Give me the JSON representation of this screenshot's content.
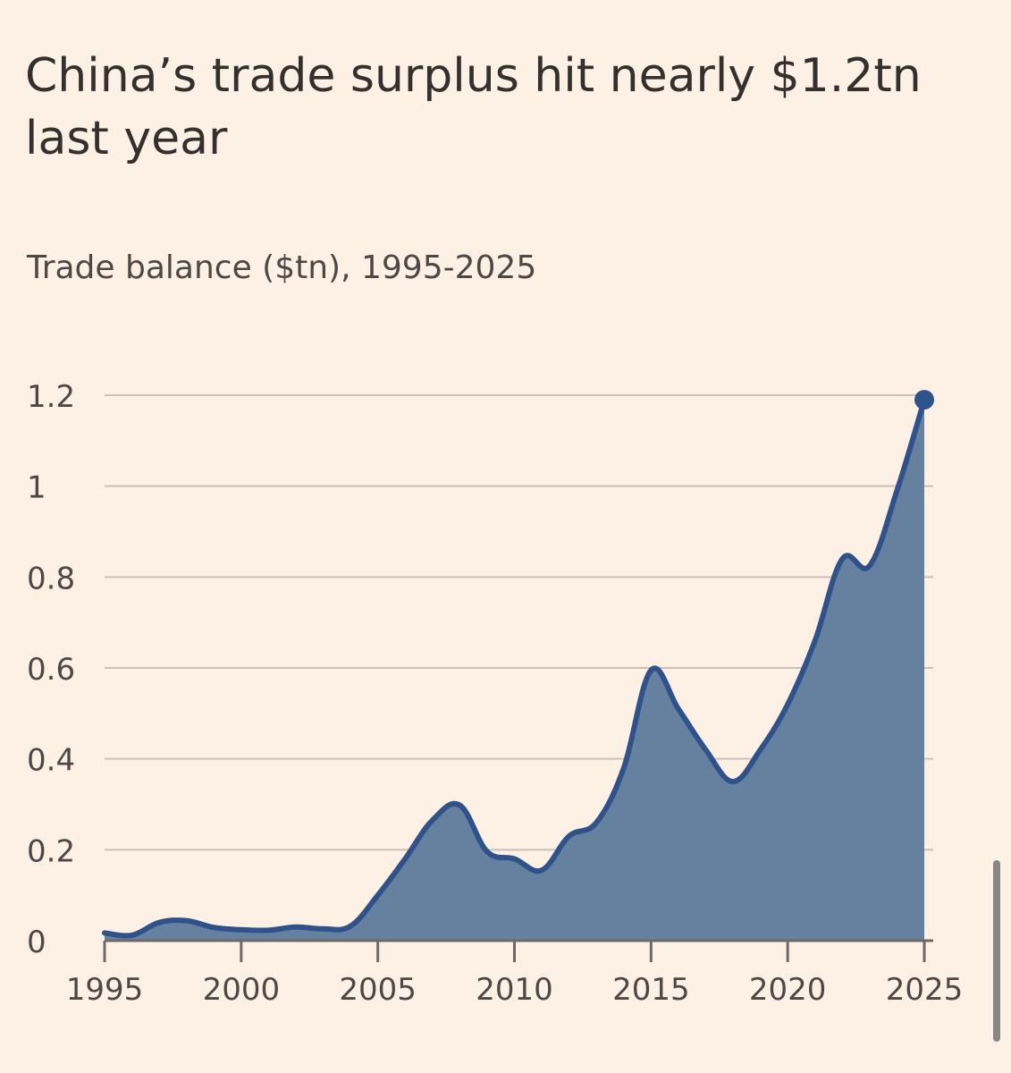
{
  "title": "China’s trade surplus hit nearly $1.2tn last year",
  "subtitle": "Trade balance ($tn), 1995-2025",
  "colors": {
    "background": "#fdf1e6",
    "line": "#2f528a",
    "area": "#66809f",
    "grid": "#c9c1ba",
    "text": "#33302e"
  },
  "chart_data": {
    "type": "area",
    "title": "China’s trade surplus hit nearly $1.2tn last year",
    "subtitle": "Trade balance ($tn), 1995-2025",
    "xlabel": "",
    "ylabel": "",
    "xlim": [
      1995,
      2025
    ],
    "ylim": [
      0,
      1.2
    ],
    "grid": true,
    "x_ticks": [
      "1995",
      "2000",
      "2005",
      "2010",
      "2015",
      "2020",
      "2025"
    ],
    "y_ticks": [
      "0",
      "0.2",
      "0.4",
      "0.6",
      "0.8",
      "1",
      "1.2"
    ],
    "series": [
      {
        "x": [
          1995,
          1996,
          1997,
          1998,
          1999,
          2000,
          2001,
          2002,
          2003,
          2004,
          2005,
          2006,
          2007,
          2008,
          2009,
          2010,
          2011,
          2012,
          2013,
          2014,
          2015,
          2016,
          2017,
          2018,
          2019,
          2020,
          2021,
          2022,
          2023,
          2024,
          2025
        ],
        "values": [
          0.017,
          0.012,
          0.04,
          0.044,
          0.029,
          0.024,
          0.023,
          0.03,
          0.026,
          0.032,
          0.1,
          0.18,
          0.265,
          0.298,
          0.196,
          0.18,
          0.155,
          0.23,
          0.26,
          0.38,
          0.595,
          0.51,
          0.42,
          0.35,
          0.42,
          0.52,
          0.66,
          0.84,
          0.825,
          0.99,
          1.19
        ]
      }
    ],
    "end_marker": true
  }
}
